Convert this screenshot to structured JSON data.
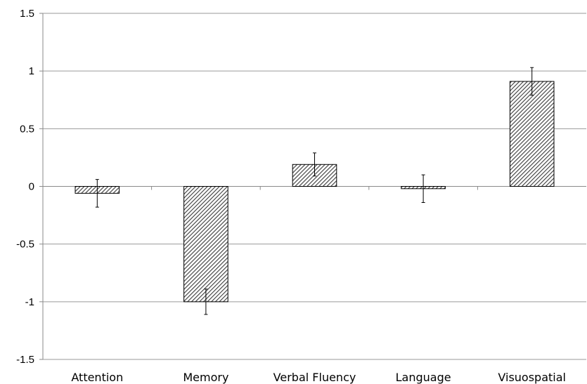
{
  "chart_data": {
    "type": "bar",
    "title": "",
    "xlabel": "",
    "ylabel": "",
    "categories": [
      "Attention",
      "Memory",
      "Verbal Fluency",
      "Language",
      "Visuospatial"
    ],
    "values": [
      -0.06,
      -1.0,
      0.19,
      -0.02,
      0.91
    ],
    "error": [
      0.12,
      0.11,
      0.1,
      0.12,
      0.12
    ],
    "ylim": [
      -1.5,
      1.5
    ],
    "yticks": [
      -1.5,
      -1,
      -0.5,
      0,
      0.5,
      1,
      1.5
    ],
    "ytick_labels": [
      "-1.5",
      "-1",
      "-0.5",
      "0",
      "0.5",
      "1",
      "1.5"
    ],
    "grid": true,
    "legend": "none",
    "colors": {
      "bar_fill": "#ffffff",
      "hatch": "#3a3a3a",
      "bar_edge": "#000000",
      "grid": "#9a9a9a",
      "axis": "#8a8a8a",
      "error_bar": "#000000"
    }
  }
}
